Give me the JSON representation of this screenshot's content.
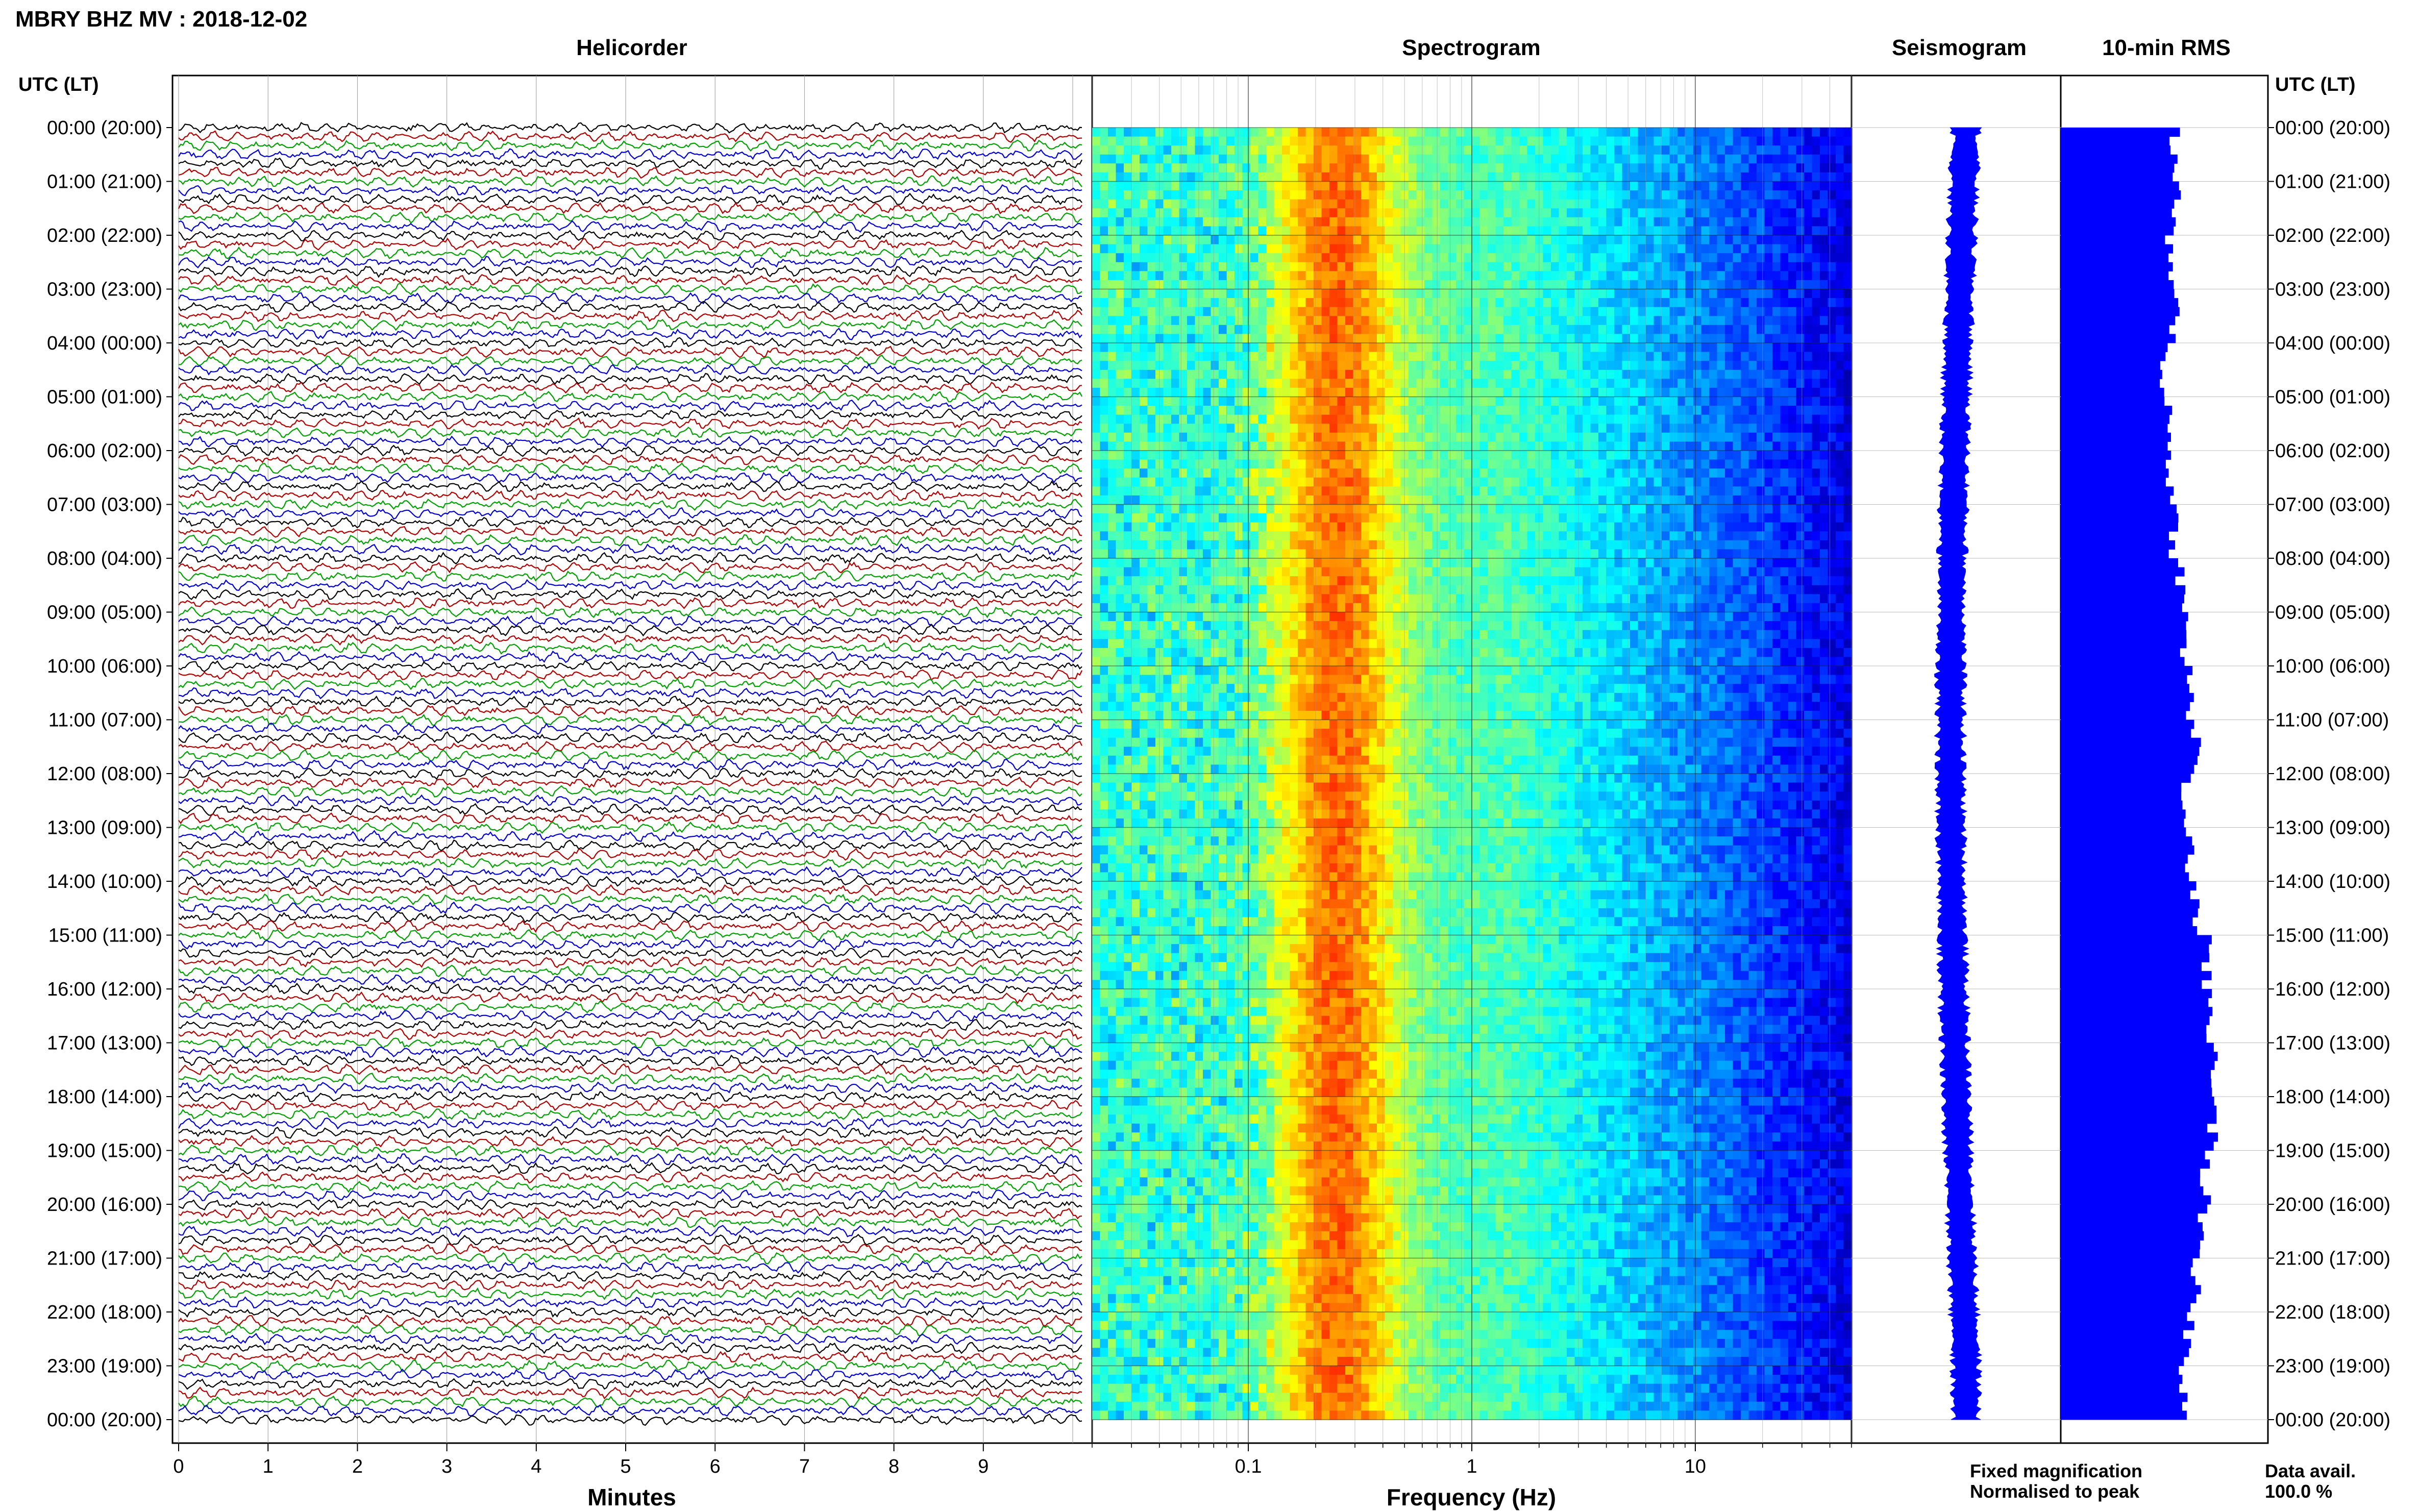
{
  "header": {
    "station_title": "MBRY BHZ MV : 2018-12-02",
    "utc_lt_label": "UTC (LT)"
  },
  "panels": {
    "helicorder_title": "Helicorder",
    "spectrogram_title": "Spectrogram",
    "seismogram_title": "Seismogram",
    "rms_title": "10-min RMS"
  },
  "time_labels": [
    "00:00 (20:00)",
    "01:00 (21:00)",
    "02:00 (22:00)",
    "03:00 (23:00)",
    "04:00 (00:00)",
    "05:00 (01:00)",
    "06:00 (02:00)",
    "07:00 (03:00)",
    "08:00 (04:00)",
    "09:00 (05:00)",
    "10:00 (06:00)",
    "11:00 (07:00)",
    "12:00 (08:00)",
    "13:00 (09:00)",
    "14:00 (10:00)",
    "15:00 (11:00)",
    "16:00 (12:00)",
    "17:00 (13:00)",
    "18:00 (14:00)",
    "19:00 (15:00)",
    "20:00 (16:00)",
    "21:00 (17:00)",
    "22:00 (18:00)",
    "23:00 (19:00)",
    "00:00 (20:00)"
  ],
  "footer": {
    "minutes_label": "Minutes",
    "frequency_label": "Frequency (Hz)",
    "legend_fixed": "Fixed magnification",
    "legend_normalised": "Normalised to peak",
    "data_avail_label": "Data avail.",
    "data_avail_value": "100.0 %"
  },
  "colors": {
    "trace_cycle": [
      "#000000",
      "#b00000",
      "#00a000",
      "#0000d0"
    ],
    "fixed_magnification": "#0000ff",
    "normalised_to_peak": "#ff0000",
    "rms_bar": "#0000ff"
  },
  "chart_data": [
    {
      "type": "line",
      "name": "helicorder",
      "title": "Helicorder",
      "xlabel": "Minutes",
      "x_ticks": [
        0,
        1,
        2,
        3,
        4,
        5,
        6,
        7,
        8,
        9
      ],
      "xlim": [
        0,
        10
      ],
      "rows_per_hour": 6,
      "hours": 24,
      "row_minutes": 10
    },
    {
      "type": "heatmap",
      "name": "spectrogram",
      "title": "Spectrogram",
      "xlabel": "Frequency (Hz)",
      "x_scale": "log",
      "xlim": [
        0.02,
        50
      ],
      "x_tick_labels": [
        "0.1",
        "1",
        "10"
      ],
      "x_ticks": [
        0.1,
        1,
        10
      ],
      "peak_band_hz": [
        0.18,
        0.35
      ],
      "colormap": "jet"
    },
    {
      "type": "line",
      "name": "seismogram",
      "title": "Seismogram"
    },
    {
      "type": "bar",
      "name": "rms",
      "title": "10-min RMS",
      "orientation": "horizontal",
      "bins": 144,
      "relative_values": [
        0.55,
        0.55,
        0.52,
        0.55,
        0.5,
        0.52,
        0.53,
        0.55,
        0.58,
        0.6,
        0.62,
        0.65,
        0.6,
        0.62,
        0.65,
        0.7,
        0.72,
        0.75,
        0.73,
        0.7,
        0.68,
        0.65,
        0.62,
        0.6
      ]
    }
  ]
}
